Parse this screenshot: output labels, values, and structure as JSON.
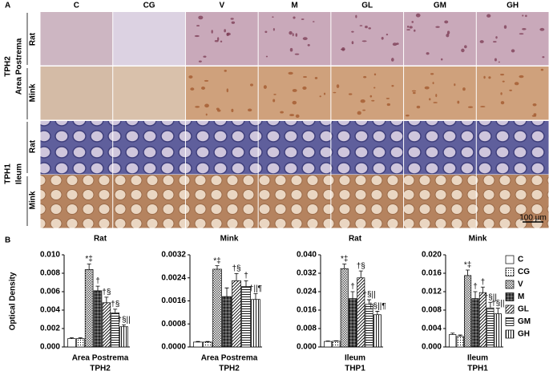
{
  "panel_a": {
    "label": "A",
    "columns": [
      "C",
      "CG",
      "V",
      "M",
      "GL",
      "GM",
      "GH"
    ],
    "groups": [
      {
        "gene": "TPH2",
        "tissue": "Area Postrema"
      },
      {
        "gene": "TPH1",
        "tissue": "Ileum"
      }
    ],
    "species": [
      "Rat",
      "Mink"
    ],
    "scale_bar": "100 μm"
  },
  "panel_b": {
    "label": "B",
    "y_label": "Optical Density",
    "legend": {
      "labels": [
        "C",
        "CG",
        "V",
        "M",
        "GL",
        "GM",
        "GH"
      ],
      "patterns": [
        "none",
        "dots",
        "checker",
        "dark-checker",
        "diagonal",
        "horizontal",
        "vertical"
      ]
    }
  },
  "chart_data": [
    {
      "type": "bar",
      "title": "Rat",
      "x_label": [
        "Area Postrema",
        "TPH2"
      ],
      "values": [
        0.0009,
        0.0009,
        0.0084,
        0.0061,
        0.0048,
        0.0037,
        0.0022
      ],
      "errors": [
        0.0001,
        0.0001,
        0.0006,
        0.0005,
        0.0006,
        0.0004,
        0.0002
      ],
      "annotations": [
        null,
        null,
        "*‡",
        "†",
        "†§",
        "†§",
        "†§||"
      ],
      "ylim": [
        0,
        0.01
      ],
      "yticks": [
        {
          "value": 0,
          "label": "0.000"
        },
        0.002,
        0.004,
        0.006,
        0.008,
        {
          "value": 0.01,
          "label": "0.010"
        }
      ]
    },
    {
      "type": "bar",
      "title": "Mink",
      "x_label": [
        "Area Postrema",
        "TPH2"
      ],
      "values": [
        0.00017,
        0.00017,
        0.0027,
        0.00175,
        0.0023,
        0.0021,
        0.00165
      ],
      "errors": [
        2e-05,
        2e-05,
        0.00012,
        0.0003,
        0.00025,
        0.0002,
        0.0002
      ],
      "annotations": [
        null,
        null,
        "*‡",
        null,
        "†§",
        "†",
        "†||¶"
      ],
      "ylim": [
        0,
        0.0032
      ],
      "yticks": [
        {
          "value": 0,
          "label": "0.0000"
        },
        0.0008,
        0.0016,
        0.0024,
        0.0032
      ]
    },
    {
      "type": "bar",
      "title": "Rat",
      "x_label": [
        "Ileum",
        "THP1"
      ],
      "values": [
        0.0024,
        0.0025,
        0.034,
        0.021,
        0.03,
        0.0185,
        0.014
      ],
      "errors": [
        0.0002,
        0.0002,
        0.002,
        0.003,
        0.003,
        0.002,
        0.0015
      ],
      "annotations": [
        null,
        null,
        "*‡",
        "†",
        "†§",
        "†§||",
        "†§||¶"
      ],
      "ylim": [
        0,
        0.04
      ],
      "yticks": [
        {
          "value": 0,
          "label": "0.000"
        },
        0.008,
        0.016,
        0.024,
        0.032,
        {
          "value": 0.04,
          "label": "0.040"
        }
      ]
    },
    {
      "type": "bar",
      "title": "Mink",
      "x_label": [
        "Ileum",
        "TPH1"
      ],
      "values": [
        0.0027,
        0.0023,
        0.0155,
        0.0105,
        0.0118,
        0.0085,
        0.0072
      ],
      "errors": [
        0.0003,
        0.0003,
        0.0012,
        0.0015,
        0.0012,
        0.0012,
        0.0012
      ],
      "annotations": [
        null,
        null,
        "*‡",
        "†",
        "†",
        "†§||",
        "†§||"
      ],
      "ylim": [
        0,
        0.02
      ],
      "yticks": [
        {
          "value": 0,
          "label": "0.000"
        },
        0.004,
        0.008,
        0.012,
        0.016,
        {
          "value": 0.02,
          "label": "0.020"
        }
      ]
    }
  ]
}
